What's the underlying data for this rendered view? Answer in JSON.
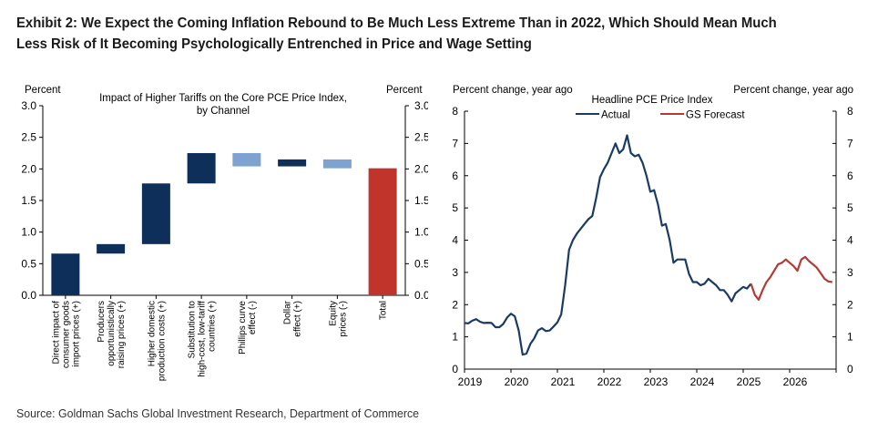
{
  "exhibit": {
    "title": "Exhibit 2: We Expect the Coming Inflation Rebound to Be Much Less Extreme Than in 2022, Which Should Mean Much Less Risk of It Becoming Psychologically Entrenched in Price and Wage Setting",
    "source": "Source: Goldman Sachs Global Investment Research, Department of Commerce"
  },
  "colors": {
    "navy": "#0e2f5a",
    "light_blue": "#7fa3d0",
    "red": "#c0342c",
    "actual_line": "#1b3a64",
    "forecast_line": "#b53a35"
  },
  "chart_data": [
    {
      "type": "bar",
      "subtype": "waterfall",
      "title": "Impact of Higher Tariffs on the Core PCE Price Index, by Channel",
      "title_lines": [
        "Impact of Higher Tariffs on the Core PCE Price Index,",
        "by Channel"
      ],
      "ylabel_left": "Percent",
      "ylabel_right": "Percent",
      "ylim": [
        0,
        3
      ],
      "yticks": [
        "0.0",
        "0.5",
        "1.0",
        "1.5",
        "2.0",
        "2.5",
        "3.0"
      ],
      "categories": [
        {
          "lines": [
            "Direct impact of",
            "consumer goods",
            "import prices (+)"
          ],
          "from": 0.0,
          "to": 0.66,
          "color": "navy"
        },
        {
          "lines": [
            "Producers",
            "opportunistically",
            "raising prices (+)"
          ],
          "from": 0.66,
          "to": 0.81,
          "color": "navy"
        },
        {
          "lines": [
            "Higher domestic",
            "production costs (+)"
          ],
          "from": 0.81,
          "to": 1.77,
          "color": "navy"
        },
        {
          "lines": [
            "Substitution to",
            "high-cost, low-tariff",
            "countries (+)"
          ],
          "from": 1.77,
          "to": 2.25,
          "color": "navy"
        },
        {
          "lines": [
            "Phillips curve",
            "effect (-)"
          ],
          "from": 2.25,
          "to": 2.04,
          "color": "light_blue"
        },
        {
          "lines": [
            "Dollar",
            "effect (+)"
          ],
          "from": 2.04,
          "to": 2.15,
          "color": "navy"
        },
        {
          "lines": [
            "Equity",
            "prices (-)"
          ],
          "from": 2.15,
          "to": 2.01,
          "color": "light_blue"
        },
        {
          "lines": [
            "Total"
          ],
          "from": 0.0,
          "to": 2.01,
          "color": "red"
        }
      ]
    },
    {
      "type": "line",
      "title": "Headline  PCE Price Index",
      "ylabel_left": "Percent change, year ago",
      "ylabel_right": "Percent change, year ago",
      "ylim": [
        0,
        8
      ],
      "yticks": [
        "0",
        "1",
        "2",
        "3",
        "4",
        "5",
        "6",
        "7",
        "8"
      ],
      "xlim": [
        2019.0,
        2027.0
      ],
      "xticks": [
        {
          "label": "2019",
          "x": 2019.0
        },
        {
          "label": "2020",
          "x": 2020.0
        },
        {
          "label": "2021",
          "x": 2021.0
        },
        {
          "label": "2022",
          "x": 2022.0
        },
        {
          "label": "2023",
          "x": 2023.0
        },
        {
          "label": "2024",
          "x": 2024.0
        },
        {
          "label": "2025",
          "x": 2025.0
        },
        {
          "label": "2026",
          "x": 2026.0
        }
      ],
      "series": [
        {
          "name": "Actual",
          "color": "actual_line",
          "points": [
            [
              2019.0,
              1.43
            ],
            [
              2019.083,
              1.42
            ],
            [
              2019.167,
              1.5
            ],
            [
              2019.25,
              1.55
            ],
            [
              2019.333,
              1.47
            ],
            [
              2019.417,
              1.43
            ],
            [
              2019.5,
              1.44
            ],
            [
              2019.583,
              1.43
            ],
            [
              2019.667,
              1.3
            ],
            [
              2019.75,
              1.3
            ],
            [
              2019.833,
              1.4
            ],
            [
              2019.917,
              1.6
            ],
            [
              2020.0,
              1.72
            ],
            [
              2020.083,
              1.64
            ],
            [
              2020.167,
              1.2
            ],
            [
              2020.25,
              0.45
            ],
            [
              2020.333,
              0.48
            ],
            [
              2020.417,
              0.78
            ],
            [
              2020.5,
              0.95
            ],
            [
              2020.583,
              1.2
            ],
            [
              2020.667,
              1.27
            ],
            [
              2020.75,
              1.18
            ],
            [
              2020.833,
              1.2
            ],
            [
              2020.917,
              1.32
            ],
            [
              2021.0,
              1.45
            ],
            [
              2021.083,
              1.7
            ],
            [
              2021.167,
              2.6
            ],
            [
              2021.25,
              3.7
            ],
            [
              2021.333,
              4.0
            ],
            [
              2021.417,
              4.2
            ],
            [
              2021.5,
              4.35
            ],
            [
              2021.583,
              4.5
            ],
            [
              2021.667,
              4.65
            ],
            [
              2021.75,
              4.75
            ],
            [
              2021.833,
              5.3
            ],
            [
              2021.917,
              5.95
            ],
            [
              2022.0,
              6.2
            ],
            [
              2022.083,
              6.4
            ],
            [
              2022.167,
              6.7
            ],
            [
              2022.25,
              7.0
            ],
            [
              2022.333,
              6.7
            ],
            [
              2022.417,
              6.82
            ],
            [
              2022.5,
              7.25
            ],
            [
              2022.583,
              6.7
            ],
            [
              2022.667,
              6.6
            ],
            [
              2022.75,
              6.65
            ],
            [
              2022.833,
              6.4
            ],
            [
              2022.917,
              6.0
            ],
            [
              2023.0,
              5.5
            ],
            [
              2023.083,
              5.55
            ],
            [
              2023.167,
              5.1
            ],
            [
              2023.25,
              4.45
            ],
            [
              2023.333,
              4.5
            ],
            [
              2023.417,
              4.0
            ],
            [
              2023.5,
              3.3
            ],
            [
              2023.583,
              3.4
            ],
            [
              2023.667,
              3.4
            ],
            [
              2023.75,
              3.4
            ],
            [
              2023.833,
              2.95
            ],
            [
              2023.917,
              2.7
            ],
            [
              2024.0,
              2.7
            ],
            [
              2024.083,
              2.6
            ],
            [
              2024.167,
              2.65
            ],
            [
              2024.25,
              2.8
            ],
            [
              2024.333,
              2.7
            ],
            [
              2024.417,
              2.6
            ],
            [
              2024.5,
              2.45
            ],
            [
              2024.583,
              2.45
            ],
            [
              2024.667,
              2.3
            ],
            [
              2024.75,
              2.1
            ],
            [
              2024.833,
              2.35
            ],
            [
              2024.917,
              2.45
            ],
            [
              2025.0,
              2.55
            ],
            [
              2025.083,
              2.5
            ],
            [
              2025.167,
              2.65
            ]
          ]
        },
        {
          "name": "GS Forecast",
          "color": "forecast_line",
          "points": [
            [
              2025.167,
              2.65
            ],
            [
              2025.25,
              2.3
            ],
            [
              2025.333,
              2.15
            ],
            [
              2025.417,
              2.45
            ],
            [
              2025.5,
              2.7
            ],
            [
              2025.583,
              2.85
            ],
            [
              2025.667,
              3.05
            ],
            [
              2025.75,
              3.25
            ],
            [
              2025.833,
              3.3
            ],
            [
              2025.917,
              3.4
            ],
            [
              2026.0,
              3.3
            ],
            [
              2026.083,
              3.2
            ],
            [
              2026.167,
              3.05
            ],
            [
              2026.25,
              3.4
            ],
            [
              2026.333,
              3.48
            ],
            [
              2026.417,
              3.35
            ],
            [
              2026.5,
              3.25
            ],
            [
              2026.583,
              3.15
            ],
            [
              2026.667,
              2.98
            ],
            [
              2026.75,
              2.8
            ],
            [
              2026.833,
              2.72
            ],
            [
              2026.917,
              2.7
            ]
          ]
        }
      ]
    }
  ]
}
